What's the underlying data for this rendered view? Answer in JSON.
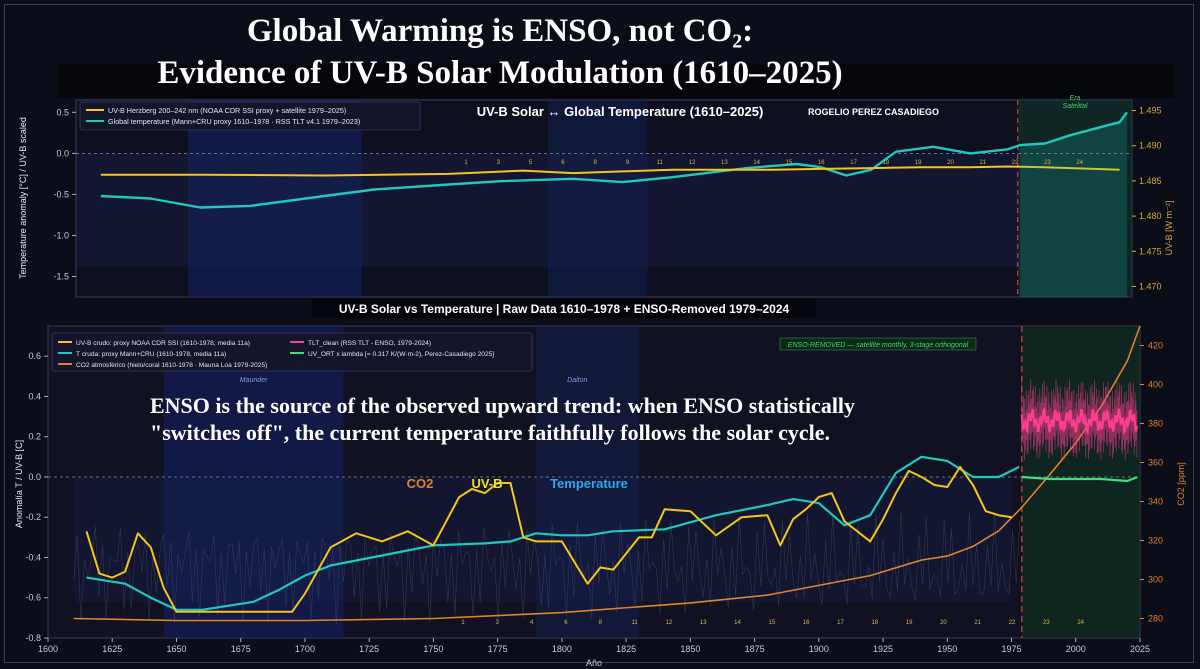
{
  "title": {
    "line1": "Global Warming is ENSO, not CO₂:",
    "line2": "Evidence of UV-B Solar Modulation (1610–2025)"
  },
  "overlay": {
    "line1": "ENSO is the source of the observed upward trend: when ENSO statistically",
    "line2": "\"switches off\", the current temperature faithfully follows the solar cycle."
  },
  "colors": {
    "uvb": "#f5c518",
    "temp": "#20c9bd",
    "co2": "#e0822e",
    "tlt": "#ff3d8e",
    "uvort": "#3ee07a",
    "accent_red": "#d83b3b"
  },
  "chart_data": [
    {
      "type": "line",
      "title": "UV-B Solar  ↔  Global Temperature  (1610–2025)",
      "author": "ROGELIO PEREZ CASADIEGO",
      "xlabel": "",
      "ylabel": "Temperature anomaly  [°C]  /  UV-B scaled",
      "ylabel_right": "UV-B  [W m⁻²]",
      "xlim": [
        1600,
        2025
      ],
      "ylim": [
        -1.75,
        0.65
      ],
      "ylim_right": [
        1.4685,
        1.4965
      ],
      "yticks": [
        -1.5,
        -1.0,
        -0.5,
        0.0,
        0.5
      ],
      "yticks_right": [
        1.47,
        1.475,
        1.48,
        1.485,
        1.49,
        1.495
      ],
      "era_label": "Era Satelital",
      "cycle_labels": [
        "1",
        "3",
        "5",
        "6",
        "8",
        "9",
        "11",
        "12",
        "13",
        "14",
        "15",
        "16",
        "17",
        "18",
        "19",
        "20",
        "21",
        "22",
        "23",
        "24"
      ],
      "legend": [
        "UV-B Herzberg 200–242 nm  (NOAA CDR SSI proxy + satellite 1979–2025)",
        "Global temperature  (Mann+CRU proxy 1610–1978 · RSS TLT v4.1 1979–2023)"
      ],
      "series": [
        {
          "name": "UV-B Herzberg 200–242 nm",
          "x": [
            1610,
            1650,
            1700,
            1750,
            1780,
            1800,
            1820,
            1840,
            1860,
            1880,
            1900,
            1920,
            1940,
            1960,
            1975,
            1990,
            2000,
            2010,
            2020
          ],
          "values": [
            -0.26,
            -0.26,
            -0.27,
            -0.25,
            -0.21,
            -0.24,
            -0.22,
            -0.2,
            -0.2,
            -0.2,
            -0.19,
            -0.18,
            -0.17,
            -0.17,
            -0.16,
            -0.17,
            -0.18,
            -0.19,
            -0.2
          ]
        },
        {
          "name": "Global temperature",
          "x": [
            1610,
            1630,
            1650,
            1670,
            1700,
            1720,
            1750,
            1770,
            1800,
            1820,
            1840,
            1870,
            1890,
            1900,
            1910,
            1920,
            1930,
            1945,
            1960,
            1975,
            1980,
            1990,
            2000,
            2010,
            2020,
            2023
          ],
          "values": [
            -0.52,
            -0.55,
            -0.66,
            -0.64,
            -0.52,
            -0.44,
            -0.38,
            -0.34,
            -0.31,
            -0.35,
            -0.29,
            -0.18,
            -0.13,
            -0.17,
            -0.27,
            -0.2,
            0.02,
            0.08,
            0.0,
            0.05,
            0.1,
            0.12,
            0.22,
            0.3,
            0.38,
            0.5
          ]
        }
      ]
    },
    {
      "type": "line",
      "title": "UV-B Solar vs Temperature  |  Raw Data 1610–1978  +  ENSO-Removed 1979–2024",
      "xlabel": "Año",
      "ylabel": "Anomalía T / UV-B      [C]",
      "ylabel_right": "CO2  [ppm]",
      "xlim": [
        1600,
        2025
      ],
      "ylim": [
        -0.8,
        0.75
      ],
      "ylim_right": [
        270,
        430
      ],
      "xticks": [
        1600,
        1625,
        1650,
        1675,
        1700,
        1725,
        1750,
        1775,
        1800,
        1825,
        1850,
        1875,
        1900,
        1925,
        1950,
        1975,
        2000,
        2025
      ],
      "yticks": [
        -0.8,
        -0.6,
        -0.4,
        -0.2,
        0.0,
        0.2,
        0.4,
        0.6
      ],
      "yticks_right": [
        280,
        300,
        320,
        340,
        360,
        380,
        400,
        420
      ],
      "annotations": [
        "Maunder",
        "Dalton",
        "ENSO-REMOVED — satellite monthly, 3-stage orthogonal"
      ],
      "labels": [
        "CO2",
        "UV-B",
        "Temperature"
      ],
      "cycle_labels": [
        "1",
        "3",
        "4",
        "6",
        "8",
        "11",
        "12",
        "13",
        "14",
        "15",
        "16",
        "17",
        "18",
        "19",
        "20",
        "21",
        "22",
        "23",
        "24"
      ],
      "legend": [
        "UV-B crudo: proxy NOAA CDR SSI (1610-1978, media 11a)",
        "T cruda: proxy Mann+CRU (1610-1978, media 11a)",
        "CO2 atmosférico (hielo/coral 1610-1978 · Mauna Loa 1979-2025)",
        "TLT_clean (RSS TLT - ENSO, 1979-2024)",
        "UV_ORT x lambda  [= 0.317 K/(W·m-2), Perez-Casadiego 2025]"
      ],
      "series": [
        {
          "name": "UV-B crudo",
          "x": [
            1615,
            1620,
            1625,
            1630,
            1635,
            1640,
            1645,
            1650,
            1660,
            1680,
            1695,
            1700,
            1710,
            1720,
            1730,
            1740,
            1750,
            1760,
            1765,
            1770,
            1775,
            1780,
            1785,
            1790,
            1800,
            1810,
            1815,
            1820,
            1830,
            1835,
            1840,
            1850,
            1860,
            1870,
            1880,
            1885,
            1890,
            1895,
            1900,
            1905,
            1910,
            1920,
            1925,
            1930,
            1935,
            1940,
            1945,
            1950,
            1955,
            1960,
            1965,
            1970,
            1975
          ],
          "values": [
            -0.27,
            -0.48,
            -0.5,
            -0.47,
            -0.28,
            -0.35,
            -0.55,
            -0.67,
            -0.67,
            -0.67,
            -0.67,
            -0.58,
            -0.35,
            -0.28,
            -0.32,
            -0.27,
            -0.34,
            -0.1,
            -0.06,
            -0.08,
            -0.03,
            -0.03,
            -0.3,
            -0.32,
            -0.32,
            -0.53,
            -0.45,
            -0.46,
            -0.3,
            -0.3,
            -0.16,
            -0.17,
            -0.29,
            -0.2,
            -0.19,
            -0.34,
            -0.21,
            -0.16,
            -0.1,
            -0.08,
            -0.22,
            -0.32,
            -0.21,
            -0.08,
            0.03,
            0.0,
            -0.04,
            -0.05,
            0.05,
            -0.04,
            -0.17,
            -0.19,
            -0.2
          ]
        },
        {
          "name": "T cruda",
          "x": [
            1615,
            1630,
            1640,
            1650,
            1660,
            1680,
            1690,
            1700,
            1710,
            1730,
            1750,
            1770,
            1780,
            1790,
            1800,
            1810,
            1820,
            1840,
            1860,
            1880,
            1890,
            1900,
            1910,
            1920,
            1930,
            1940,
            1950,
            1960,
            1970,
            1978
          ],
          "values": [
            -0.5,
            -0.53,
            -0.6,
            -0.66,
            -0.66,
            -0.62,
            -0.56,
            -0.49,
            -0.44,
            -0.39,
            -0.34,
            -0.33,
            -0.32,
            -0.28,
            -0.29,
            -0.29,
            -0.27,
            -0.26,
            -0.19,
            -0.14,
            -0.11,
            -0.13,
            -0.24,
            -0.19,
            0.02,
            0.1,
            0.08,
            0.0,
            0.0,
            0.05
          ]
        },
        {
          "name": "CO2 atmosférico",
          "x": [
            1610,
            1650,
            1700,
            1750,
            1800,
            1850,
            1880,
            1900,
            1920,
            1940,
            1950,
            1960,
            1970,
            1979,
            1990,
            2000,
            2010,
            2020,
            2025
          ],
          "values": [
            280,
            279,
            279,
            280,
            283,
            288,
            292,
            297,
            302,
            310,
            312,
            317,
            325,
            337,
            354,
            370,
            389,
            412,
            430
          ]
        },
        {
          "name": "TLT_clean",
          "x": [
            1979,
            1985,
            1990,
            1995,
            2000,
            2005,
            2010,
            2015,
            2020,
            2024
          ],
          "values": [
            0.3,
            0.28,
            0.3,
            0.24,
            0.26,
            0.24,
            0.26,
            0.24,
            0.28,
            0.26
          ]
        },
        {
          "name": "UV_ORT x lambda",
          "x": [
            1979,
            1990,
            2000,
            2010,
            2020,
            2024
          ],
          "values": [
            0.0,
            -0.01,
            -0.01,
            -0.01,
            -0.02,
            0.0
          ]
        }
      ]
    }
  ]
}
